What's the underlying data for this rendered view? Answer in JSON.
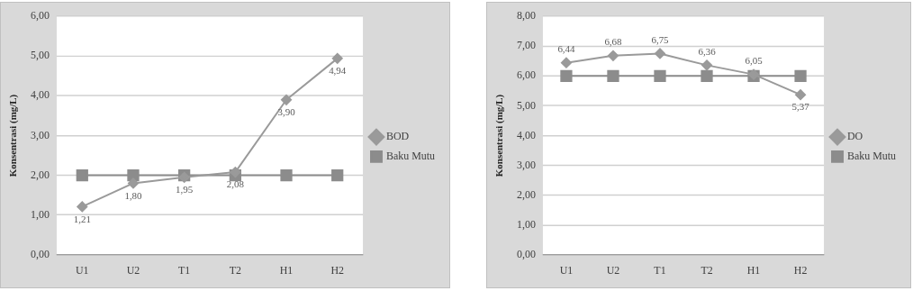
{
  "chart_data": [
    {
      "type": "line",
      "ylabel": "Konsentrasi (mg/L)",
      "categories": [
        "U1",
        "U2",
        "T1",
        "T2",
        "H1",
        "H2"
      ],
      "ylim": [
        0,
        6
      ],
      "yticks": [
        {
          "value": 0,
          "label": "0,00"
        },
        {
          "value": 1,
          "label": "1,00"
        },
        {
          "value": 2,
          "label": "2,00"
        },
        {
          "value": 3,
          "label": "3,00"
        },
        {
          "value": 4,
          "label": "4,00"
        },
        {
          "value": 5,
          "label": "5,00"
        },
        {
          "value": 6,
          "label": "6,00"
        }
      ],
      "grid": "y",
      "legend": "right",
      "series": [
        {
          "name": "BOD",
          "color": "#9a9a9a",
          "marker": "diamond",
          "values": [
            1.21,
            1.8,
            1.95,
            2.08,
            3.9,
            4.94
          ],
          "value_labels": [
            "1,21",
            "1,80",
            "1,95",
            "2,08",
            "3,90",
            "4,94"
          ]
        },
        {
          "name": "Baku Mutu",
          "color": "#8c8c8c",
          "marker": "square",
          "values": [
            2,
            2,
            2,
            2,
            2,
            2
          ]
        }
      ]
    },
    {
      "type": "line",
      "ylabel": "Konsentrasi (mg/L)",
      "categories": [
        "U1",
        "U2",
        "T1",
        "T2",
        "H1",
        "H2"
      ],
      "ylim": [
        0,
        8
      ],
      "yticks": [
        {
          "value": 0,
          "label": "0,00"
        },
        {
          "value": 1,
          "label": "1,00"
        },
        {
          "value": 2,
          "label": "2,00"
        },
        {
          "value": 3,
          "label": "3,00"
        },
        {
          "value": 4,
          "label": "4,00"
        },
        {
          "value": 5,
          "label": "5,00"
        },
        {
          "value": 6,
          "label": "6,00"
        },
        {
          "value": 7,
          "label": "7,00"
        },
        {
          "value": 8,
          "label": "8,00"
        }
      ],
      "grid": "y",
      "legend": "right",
      "series": [
        {
          "name": "DO",
          "color": "#9a9a9a",
          "marker": "diamond",
          "values": [
            6.44,
            6.68,
            6.75,
            6.36,
            6.05,
            5.37
          ],
          "value_labels": [
            "6,44",
            "6,68",
            "6,75",
            "6,36",
            "6,05",
            "5,37"
          ]
        },
        {
          "name": "Baku Mutu",
          "color": "#8c8c8c",
          "marker": "square",
          "values": [
            6,
            6,
            6,
            6,
            6,
            6
          ]
        }
      ]
    }
  ]
}
